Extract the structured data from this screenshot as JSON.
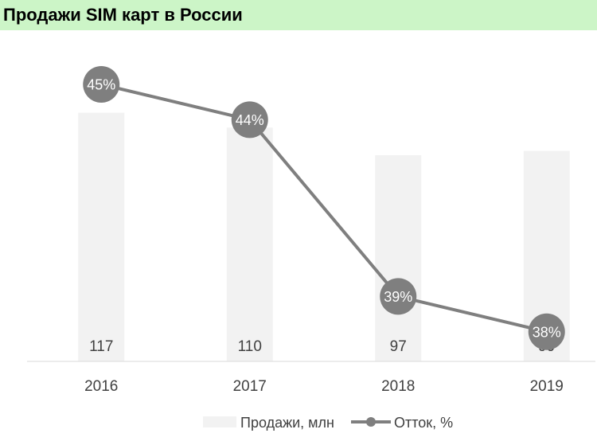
{
  "title": "Продажи SIM карт в России",
  "colors": {
    "title_background": "#ccf5c7",
    "bar": "#f2f2f2",
    "line": "#7f7f7f",
    "marker": "#7f7f7f",
    "text": "#404040",
    "axis": "#d9d9d9"
  },
  "chart_data": {
    "type": "bar",
    "categories": [
      "2016",
      "2017",
      "2018",
      "2019"
    ],
    "series": [
      {
        "name": "Продажи, млн",
        "type": "bar",
        "values": [
          117,
          110,
          97,
          99
        ],
        "labels": [
          "117",
          "110",
          "97",
          "99"
        ]
      },
      {
        "name": "Отток, %",
        "type": "line",
        "values": [
          45,
          44,
          39,
          38
        ],
        "labels": [
          "45%",
          "44%",
          "39%",
          "38%"
        ]
      }
    ],
    "grid": false,
    "legend_position": "bottom"
  }
}
